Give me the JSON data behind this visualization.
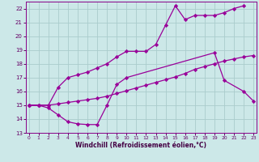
{
  "line1_x": [
    0,
    1,
    2,
    3,
    4,
    5,
    6,
    7,
    8,
    9,
    10,
    11,
    12,
    13,
    14,
    15,
    16,
    17,
    18,
    19,
    20,
    21,
    22
  ],
  "line1_y": [
    15.0,
    15.0,
    15.0,
    16.3,
    17.0,
    17.2,
    17.4,
    17.7,
    18.0,
    18.5,
    18.9,
    18.9,
    18.9,
    19.4,
    20.8,
    22.2,
    21.2,
    21.5,
    21.5,
    21.5,
    21.7,
    22.0,
    22.2
  ],
  "line2_x": [
    0,
    1,
    2,
    3,
    4,
    5,
    6,
    7,
    8,
    9,
    10,
    11,
    12,
    13,
    14,
    15,
    16,
    17,
    18,
    19,
    20,
    21,
    22,
    23
  ],
  "line2_y": [
    15.0,
    15.0,
    15.0,
    15.1,
    15.2,
    15.3,
    15.4,
    15.5,
    15.65,
    15.85,
    16.05,
    16.25,
    16.45,
    16.65,
    16.85,
    17.05,
    17.3,
    17.6,
    17.8,
    18.0,
    18.2,
    18.35,
    18.5,
    18.6
  ],
  "line3_x": [
    0,
    1,
    2,
    3,
    4,
    5,
    6,
    7,
    8,
    9,
    10,
    19,
    20,
    22,
    23
  ],
  "line3_y": [
    15.0,
    15.0,
    14.8,
    14.3,
    13.8,
    13.65,
    13.6,
    13.6,
    15.0,
    16.5,
    17.0,
    18.8,
    16.8,
    16.0,
    15.3
  ],
  "line_color": "#990099",
  "bg_color": "#cce8e8",
  "grid_color": "#aacccc",
  "xlabel": "Windchill (Refroidissement éolien,°C)",
  "ylim": [
    13,
    22.5
  ],
  "xlim": [
    -0.3,
    23.3
  ],
  "yticks": [
    13,
    14,
    15,
    16,
    17,
    18,
    19,
    20,
    21,
    22
  ],
  "xticks": [
    0,
    1,
    2,
    3,
    4,
    5,
    6,
    7,
    8,
    9,
    10,
    11,
    12,
    13,
    14,
    15,
    16,
    17,
    18,
    19,
    20,
    21,
    22,
    23
  ]
}
